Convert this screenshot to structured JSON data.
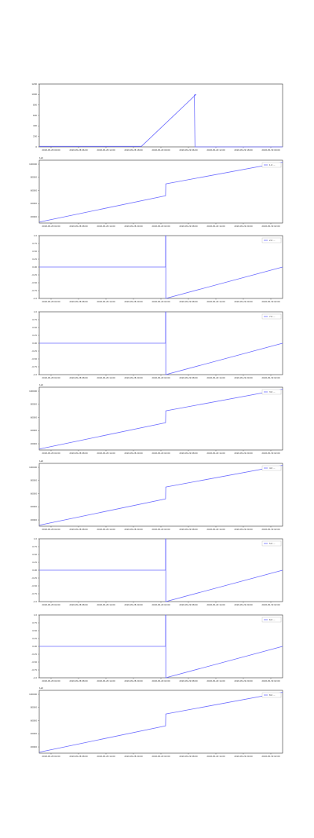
{
  "figure": {
    "colors": {
      "series": "#6b6bff",
      "axes": "#333333",
      "grid": "#bbbbbb"
    }
  },
  "chart_data": [
    {
      "type": "line",
      "ylim": [
        0,
        1200
      ],
      "yticks": [
        "0",
        "200",
        "400",
        "600",
        "800",
        "1000",
        "1200"
      ],
      "xticks": [
        "2018-05-28 00:00",
        "2018-05-28 06:00",
        "2018-05-28 12:00",
        "2018-05-28 18:00",
        "2018-05-29 00:00",
        "2018-05-29 06:00",
        "2018-05-29 12:00",
        "2018-05-29 18:00",
        "2018-05-30 00:00"
      ],
      "grid": false,
      "series": [
        {
          "name": "",
          "x": [
            0,
            0.42,
            0.644,
            0.637,
            0.64,
            1.0
          ],
          "y": [
            10,
            10,
            1000,
            990,
            0,
            0
          ]
        }
      ]
    },
    {
      "type": "line",
      "offset_text": "1e6",
      "ylim": [
        10500,
        106000
      ],
      "yticks": [
        "20000",
        "40000",
        "60000",
        "80000",
        "100000"
      ],
      "xticks": [
        "2018-05-28 02:00",
        "2018-05-28 08:00",
        "2018-05-28 14:00",
        "2018-05-28 20:00",
        "2018-05-29 02:00",
        "2018-05-29 08:00",
        "2018-05-29 14:00",
        "2018-05-29 20:00",
        "2018-05-30 02:00"
      ],
      "legend": "top-right",
      "grid": false,
      "series": [
        {
          "name": "1.0 ...",
          "x": [
            0,
            0.519,
            0.52,
            1.0
          ],
          "y": [
            12000,
            52000,
            70000,
            103000
          ]
        }
      ]
    },
    {
      "type": "line",
      "ylim": [
        -1.0,
        1.0
      ],
      "yticks": [
        "1.0",
        "0.75",
        "0.50",
        "0.25",
        "0.00",
        "-0.25",
        "-0.50",
        "-0.75",
        "-1.0"
      ],
      "xticks": [
        "2018-05-28 02:00",
        "2018-05-28 08:00",
        "2018-05-28 14:00",
        "2018-05-28 20:00",
        "2018-05-29 02:00",
        "2018-05-29 08:00",
        "2018-05-29 14:00",
        "2018-05-29 20:00",
        "2018-05-30 02:00"
      ],
      "legend": "top-right",
      "grid": false,
      "series": [
        {
          "name": "2.0 ...",
          "x": [
            0,
            0.519,
            0.519,
            0.52,
            0.52,
            1.0
          ],
          "y": [
            0,
            0,
            1.0,
            1.0,
            -1.0,
            0
          ]
        }
      ]
    },
    {
      "type": "line",
      "ylim": [
        -1.0,
        1.0
      ],
      "yticks": [
        "1.0",
        "0.75",
        "0.50",
        "0.25",
        "0.00",
        "-0.25",
        "-0.50",
        "-0.75",
        "-1.0"
      ],
      "xticks": [
        "2018-05-28 02:00",
        "2018-05-28 08:00",
        "2018-05-28 14:00",
        "2018-05-28 20:00",
        "2018-05-29 02:00",
        "2018-05-29 08:00",
        "2018-05-29 14:00",
        "2018-05-29 20:00",
        "2018-05-30 02:00"
      ],
      "legend": "top-right",
      "grid": false,
      "series": [
        {
          "name": "7.0 ...",
          "x": [
            0,
            0.519,
            0.519,
            0.52,
            0.52,
            1.0
          ],
          "y": [
            0,
            0,
            1.0,
            1.0,
            -1.0,
            0
          ]
        }
      ]
    },
    {
      "type": "line",
      "offset_text": "1e6",
      "ylim": [
        10500,
        106000
      ],
      "yticks": [
        "20000",
        "40000",
        "60000",
        "80000",
        "100000"
      ],
      "xticks": [
        "2018-05-28 02:00",
        "2018-05-28 08:00",
        "2018-05-28 14:00",
        "2018-05-28 20:00",
        "2018-05-29 02:00",
        "2018-05-29 08:00",
        "2018-05-29 14:00",
        "2018-05-29 20:00",
        "2018-05-30 02:00"
      ],
      "legend": "top-right",
      "grid": false,
      "series": [
        {
          "name": "3.0 ...",
          "x": [
            0,
            0.519,
            0.52,
            1.0
          ],
          "y": [
            12000,
            52000,
            70000,
            103000
          ]
        }
      ]
    },
    {
      "type": "line",
      "offset_text": "1e6",
      "ylim": [
        10500,
        106000
      ],
      "yticks": [
        "20000",
        "40000",
        "60000",
        "80000",
        "100000"
      ],
      "xticks": [
        "2018-05-28 02:00",
        "2018-05-28 08:00",
        "2018-05-28 14:00",
        "2018-05-28 20:00",
        "2018-05-29 02:00",
        "2018-05-29 08:00",
        "2018-05-29 14:00",
        "2018-05-29 20:00",
        "2018-05-30 02:00"
      ],
      "legend": "top-right",
      "grid": false,
      "series": [
        {
          "name": "4.0 ...",
          "x": [
            0,
            0.519,
            0.52,
            1.0
          ],
          "y": [
            12000,
            52000,
            70000,
            103000
          ]
        }
      ]
    },
    {
      "type": "line",
      "ylim": [
        -1.0,
        1.0
      ],
      "yticks": [
        "1.0",
        "0.75",
        "0.50",
        "0.25",
        "0.00",
        "-0.25",
        "-0.50",
        "-0.75",
        "-1.0"
      ],
      "xticks": [
        "2018-05-28 02:00",
        "2018-05-28 08:00",
        "2018-05-28 14:00",
        "2018-05-28 20:00",
        "2018-05-29 02:00",
        "2018-05-29 08:00",
        "2018-05-29 14:00",
        "2018-05-29 20:00",
        "2018-05-30 02:00"
      ],
      "legend": "top-right",
      "grid": false,
      "series": [
        {
          "name": "5.0 ...",
          "x": [
            0,
            0.519,
            0.519,
            0.52,
            0.52,
            1.0
          ],
          "y": [
            0,
            0,
            1.0,
            1.0,
            -1.0,
            0
          ]
        }
      ]
    },
    {
      "type": "line",
      "ylim": [
        -1.0,
        1.0
      ],
      "yticks": [
        "1.0",
        "0.75",
        "0.50",
        "0.25",
        "0.00",
        "-0.25",
        "-0.50",
        "-0.75",
        "-1.0"
      ],
      "xticks": [
        "2018-05-28 02:00",
        "2018-05-28 08:00",
        "2018-05-28 14:00",
        "2018-05-28 20:00",
        "2018-05-29 02:00",
        "2018-05-29 08:00",
        "2018-05-29 14:00",
        "2018-05-29 20:00",
        "2018-05-30 02:00"
      ],
      "legend": "top-right",
      "grid": false,
      "series": [
        {
          "name": "6.0 ...",
          "x": [
            0,
            0.519,
            0.519,
            0.52,
            0.52,
            1.0
          ],
          "y": [
            0,
            0,
            1.0,
            1.0,
            -1.0,
            0
          ]
        }
      ]
    },
    {
      "type": "line",
      "offset_text": "1e6",
      "ylim": [
        10500,
        106000
      ],
      "yticks": [
        "20000",
        "40000",
        "60000",
        "80000",
        "100000"
      ],
      "xticks": [
        "2018-05-28 02:00",
        "2018-05-28 08:00",
        "2018-05-28 14:00",
        "2018-05-28 20:00",
        "2018-05-29 02:00",
        "2018-05-29 08:00",
        "2018-05-29 14:00",
        "2018-05-29 20:00",
        "2018-05-30 02:00"
      ],
      "legend": "top-right",
      "grid": false,
      "series": [
        {
          "name": "8.0 ...",
          "x": [
            0,
            0.519,
            0.52,
            1.0
          ],
          "y": [
            12000,
            52000,
            70000,
            103000
          ]
        }
      ]
    }
  ]
}
